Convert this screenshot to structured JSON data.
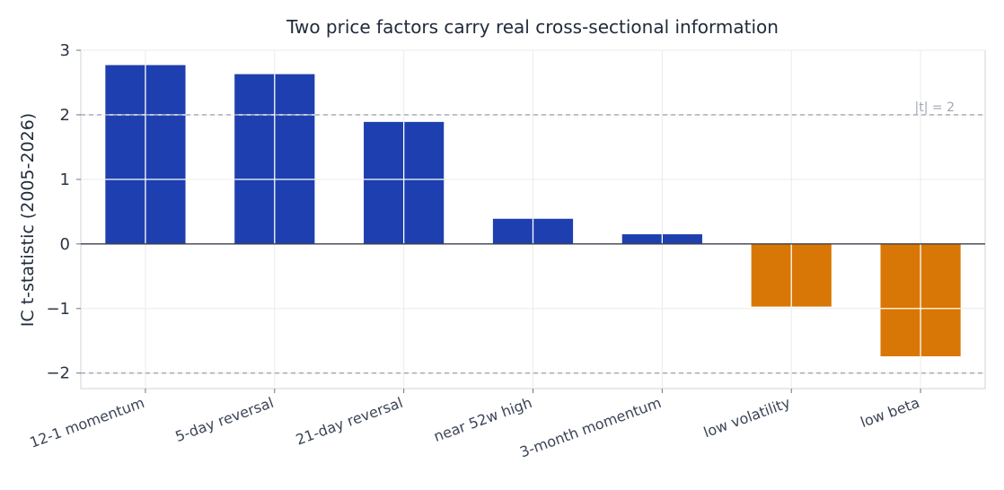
{
  "chart_data": {
    "type": "bar",
    "title": "Two price factors carry real cross-sectional information",
    "xlabel": "",
    "ylabel": "IC t-statistic (2005-2026)",
    "categories": [
      "12-1 momentum",
      "5-day reversal",
      "21-day reversal",
      "near 52w high",
      "3-month momentum",
      "low volatility",
      "low beta"
    ],
    "values": [
      2.77,
      2.63,
      1.89,
      0.39,
      0.15,
      -0.97,
      -1.74
    ],
    "ylim": [
      -2.24,
      3.0
    ],
    "yticks": [
      3,
      2,
      1,
      0,
      -1,
      -2
    ],
    "ytick_labels": [
      "3",
      "2",
      "1",
      "0",
      "−1",
      "−2"
    ],
    "reference_lines": [
      {
        "y": 2,
        "label": "|t| = 2"
      },
      {
        "y": -2,
        "label": ""
      }
    ],
    "grid": true,
    "colors": {
      "positive": "#1e3faf",
      "negative": "#d97706",
      "reference": "#a0a6b2",
      "zero_line": "#3a3f4a",
      "grid": "#ebebeb",
      "axis": "#cfd3da"
    }
  }
}
